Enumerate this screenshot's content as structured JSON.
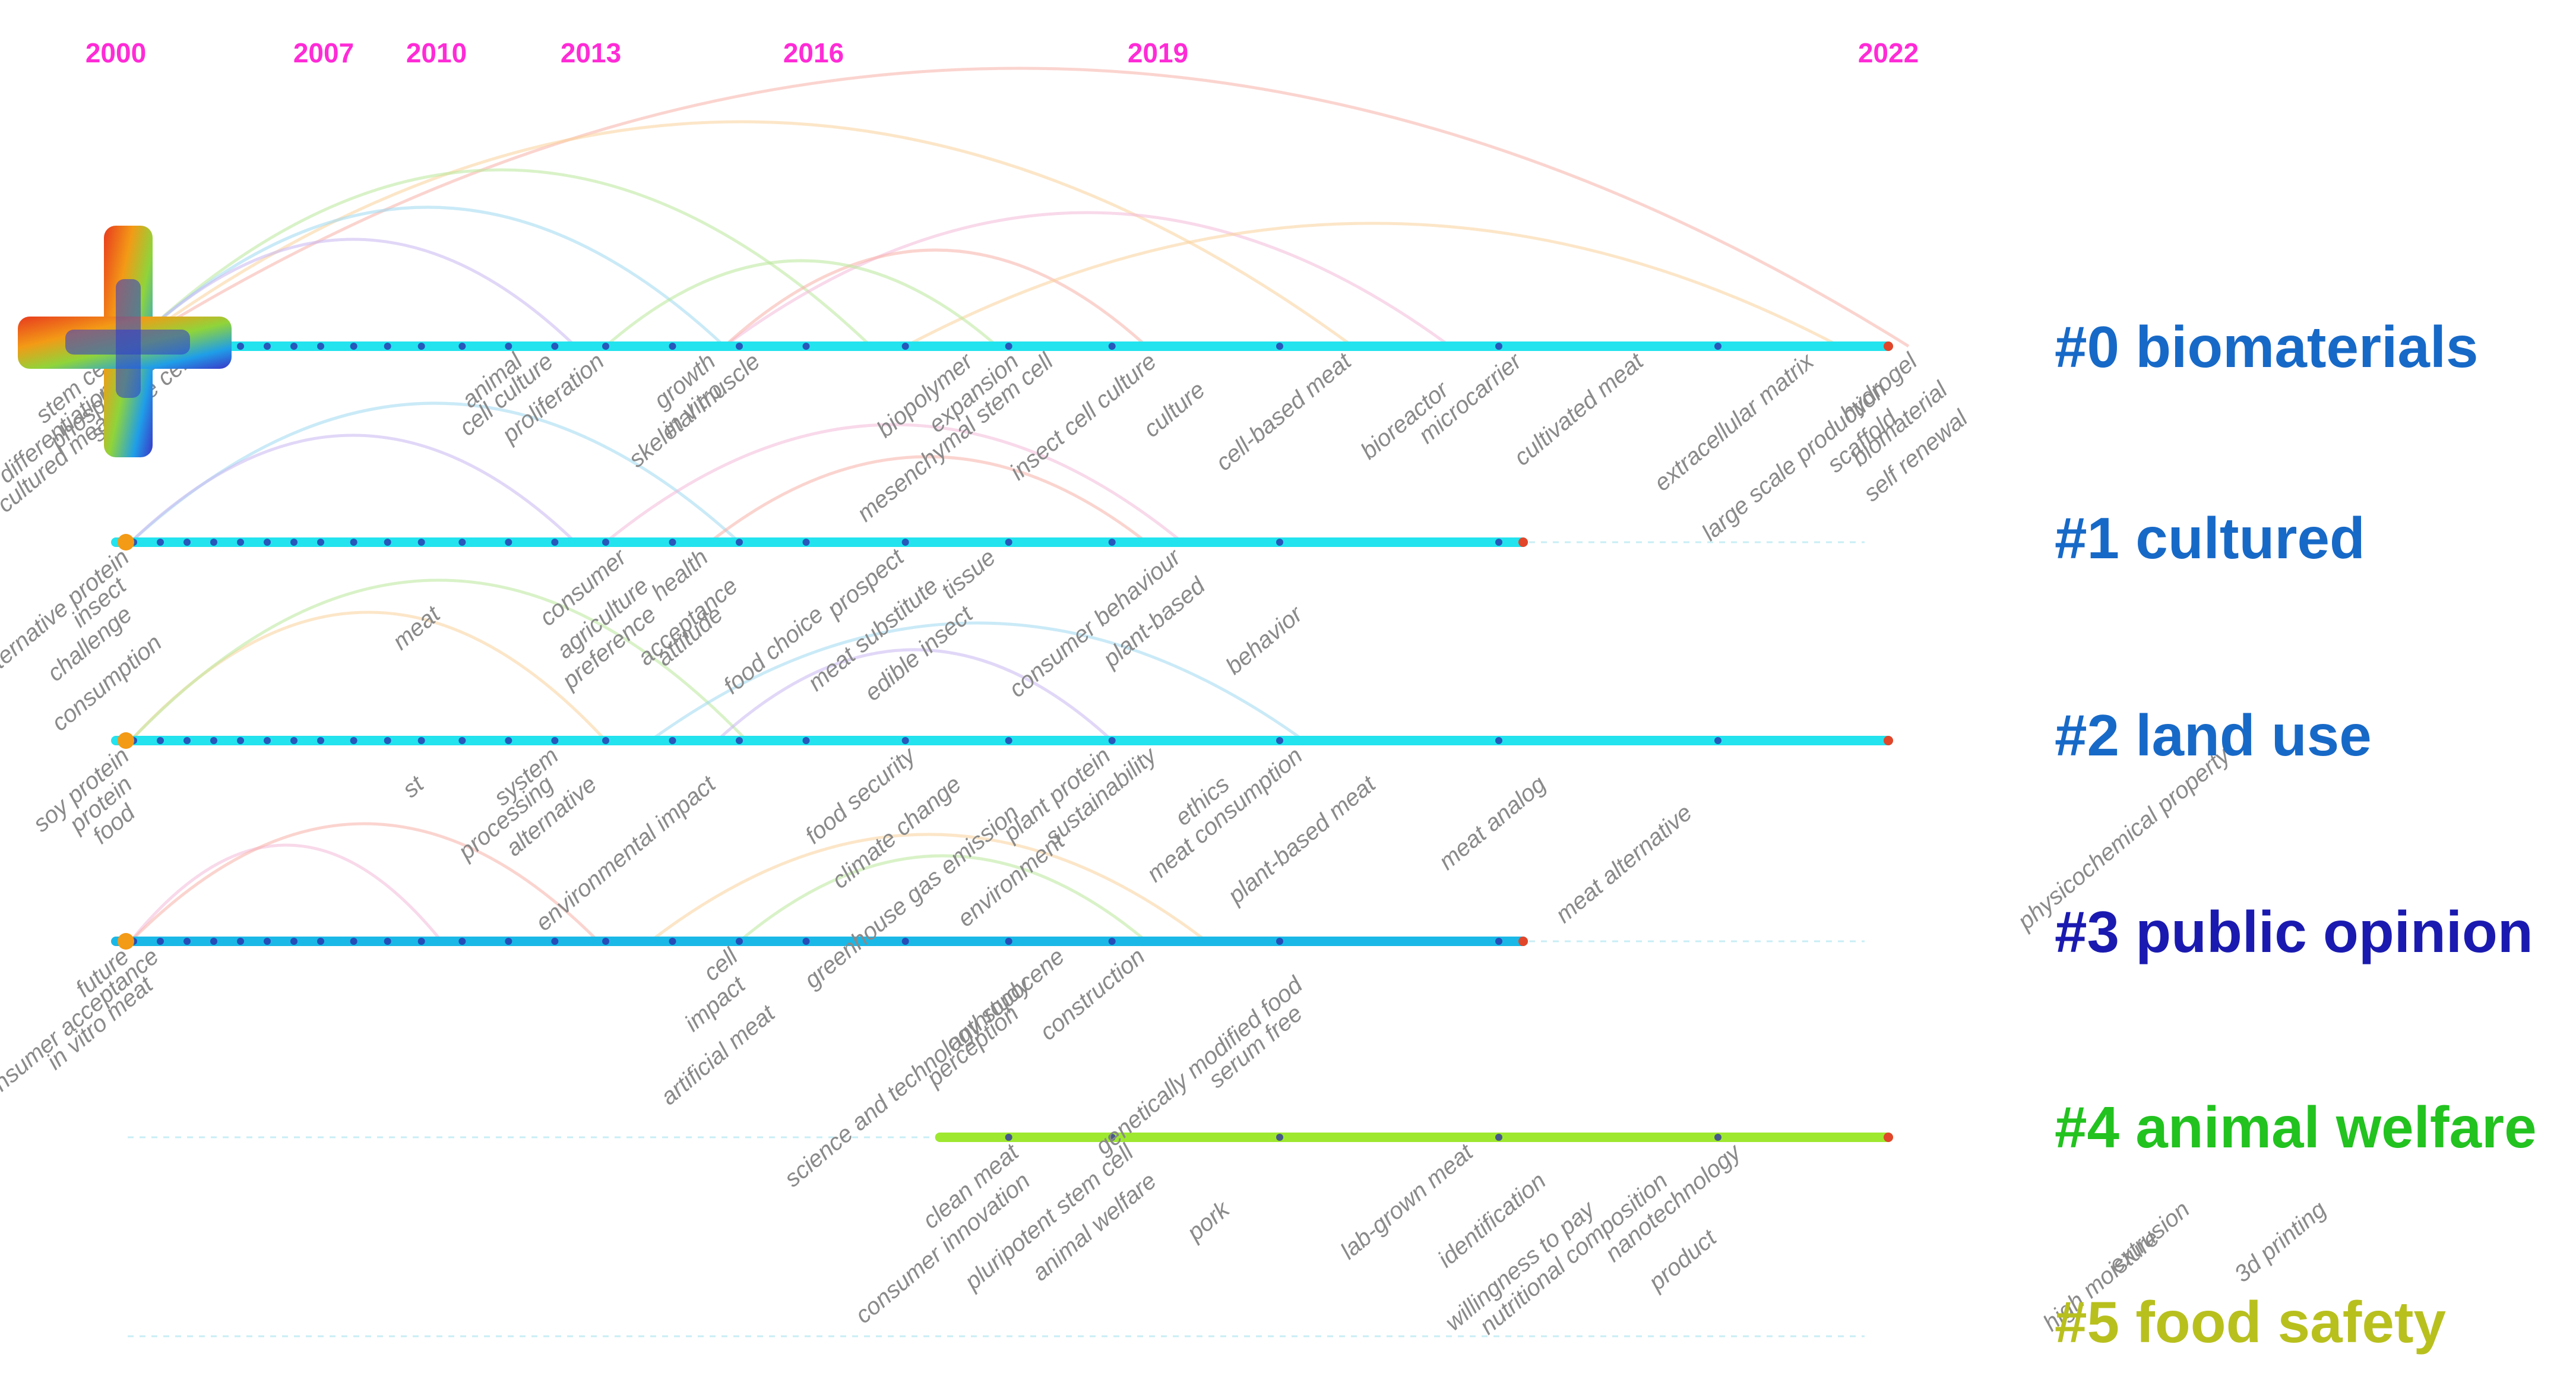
{
  "years": [
    "2000",
    "2007",
    "2010",
    "2013",
    "2016",
    "2019",
    "2022"
  ],
  "colors": {
    "year_text": "#ff2bd6",
    "track": "#22e3ee",
    "track_dark": "#1ab8e6",
    "track_green": "#9ee82f",
    "keyword": "#8a8a8a",
    "cluster0": "#1769c7",
    "cluster1": "#1769c7",
    "cluster2": "#1769c7",
    "cluster3": "#1a1ab0",
    "cluster4": "#22c21f",
    "cluster5": "#b8c01e"
  },
  "clusters": [
    {
      "label": "#0 biomaterials",
      "start_year": 2000,
      "end_year": 2022
    },
    {
      "label": "#1 cultured",
      "start_year": 2000,
      "end_year": 2020.5
    },
    {
      "label": "#2 land use",
      "start_year": 2000,
      "end_year": 2022
    },
    {
      "label": "#3 public opinion",
      "start_year": 2000,
      "end_year": 2020.5
    },
    {
      "label": "#4 animal welfare",
      "start_year": 2017.1,
      "end_year": 2022
    },
    {
      "label": "#5 food safety",
      "start_year": null,
      "end_year": null
    }
  ],
  "keywords": [
    {
      "text": "stem cell",
      "year": 2000,
      "track": 0,
      "side": "below",
      "rank": 0
    },
    {
      "text": "differentiation",
      "year": 2000,
      "track": 0,
      "side": "below",
      "rank": 1
    },
    {
      "text": "cultured meat",
      "year": 2000,
      "track": 0,
      "side": "below",
      "rank": 2
    },
    {
      "text": "phospholipid",
      "year": 2001.5,
      "track": 0,
      "side": "below",
      "rank": 0
    },
    {
      "text": "satellite cell",
      "year": 2002.6,
      "track": 0,
      "side": "below",
      "rank": 0
    },
    {
      "text": "animal",
      "year": 2011.7,
      "track": 0,
      "side": "below",
      "rank": 0
    },
    {
      "text": "cell culture",
      "year": 2012.3,
      "track": 0,
      "side": "below",
      "rank": 0
    },
    {
      "text": "proliferation",
      "year": 2013.2,
      "track": 0,
      "side": "below",
      "rank": 0
    },
    {
      "text": "growth",
      "year": 2014.7,
      "track": 0,
      "side": "below",
      "rank": 0
    },
    {
      "text": "in vitro",
      "year": 2014.8,
      "track": 0,
      "side": "below",
      "rank": 1
    },
    {
      "text": "skeletal muscle",
      "year": 2015.3,
      "track": 0,
      "side": "below",
      "rank": 0
    },
    {
      "text": "biopolymer",
      "year": 2017.4,
      "track": 0,
      "side": "below",
      "rank": 0
    },
    {
      "text": "expansion",
      "year": 2017.8,
      "track": 0,
      "side": "below",
      "rank": 0
    },
    {
      "text": "mesenchymal stem cell",
      "year": 2018.1,
      "track": 0,
      "side": "below",
      "rank": 0
    },
    {
      "text": "insect cell culture",
      "year": 2019.0,
      "track": 0,
      "side": "below",
      "rank": 0
    },
    {
      "text": "culture",
      "year": 2019.2,
      "track": 0,
      "side": "below",
      "rank": 1
    },
    {
      "text": "cell-based meat",
      "year": 2019.8,
      "track": 0,
      "side": "below",
      "rank": 0
    },
    {
      "text": "microcarrier",
      "year": 2020.5,
      "track": 0,
      "side": "below",
      "rank": 0
    },
    {
      "text": "bioreactor",
      "year": 2020.2,
      "track": 0,
      "side": "below",
      "rank": 1
    },
    {
      "text": "cultivated meat",
      "year": 2021.0,
      "track": 0,
      "side": "below",
      "rank": 0
    },
    {
      "text": "extracellular matrix",
      "year": 2021.7,
      "track": 0,
      "side": "below",
      "rank": 0
    },
    {
      "text": "large scale production",
      "year": 2022.0,
      "track": 0,
      "side": "below",
      "rank": 1
    },
    {
      "text": "scaffold",
      "year": 2022.1,
      "track": 0,
      "side": "below",
      "rank": 2
    },
    {
      "text": "hydrogel",
      "year": 2022.3,
      "track": 0,
      "side": "below",
      "rank": 0
    },
    {
      "text": "biomaterial",
      "year": 2022.6,
      "track": 0,
      "side": "below",
      "rank": 1
    },
    {
      "text": "self renewal",
      "year": 2022.8,
      "track": 0,
      "side": "below",
      "rank": 2
    },
    {
      "text": "alternative protein",
      "year": 2000.5,
      "track": 1,
      "side": "below",
      "rank": 0
    },
    {
      "text": "insect",
      "year": 2000.4,
      "track": 1,
      "side": "below",
      "rank": 1
    },
    {
      "text": "challenge",
      "year": 2000.6,
      "track": 1,
      "side": "below",
      "rank": 2
    },
    {
      "text": "consumption",
      "year": 2001.6,
      "track": 1,
      "side": "below",
      "rank": 3
    },
    {
      "text": "meat",
      "year": 2010.1,
      "track": 1,
      "side": "below",
      "rank": 2
    },
    {
      "text": "consumer",
      "year": 2013.5,
      "track": 1,
      "side": "below",
      "rank": 0
    },
    {
      "text": "agriculture",
      "year": 2013.8,
      "track": 1,
      "side": "below",
      "rank": 1
    },
    {
      "text": "preference",
      "year": 2013.9,
      "track": 1,
      "side": "below",
      "rank": 2
    },
    {
      "text": "health",
      "year": 2014.6,
      "track": 1,
      "side": "below",
      "rank": 0
    },
    {
      "text": "acceptance",
      "year": 2015.0,
      "track": 1,
      "side": "below",
      "rank": 1
    },
    {
      "text": "attitude",
      "year": 2014.8,
      "track": 1,
      "side": "below",
      "rank": 2
    },
    {
      "text": "food choice",
      "year": 2016.1,
      "track": 1,
      "side": "below",
      "rank": 2
    },
    {
      "text": "prospect",
      "year": 2016.8,
      "track": 1,
      "side": "below",
      "rank": 0
    },
    {
      "text": "meat substitute",
      "year": 2017.1,
      "track": 1,
      "side": "below",
      "rank": 1
    },
    {
      "text": "tissue",
      "year": 2017.6,
      "track": 1,
      "side": "below",
      "rank": 0
    },
    {
      "text": "edible insect",
      "year": 2017.4,
      "track": 1,
      "side": "below",
      "rank": 2
    },
    {
      "text": "consumer behaviour",
      "year": 2019.1,
      "track": 1,
      "side": "below",
      "rank": 0
    },
    {
      "text": "plant-based",
      "year": 2019.2,
      "track": 1,
      "side": "below",
      "rank": 1
    },
    {
      "text": "behavior",
      "year": 2019.6,
      "track": 1,
      "side": "below",
      "rank": 2
    },
    {
      "text": "soy protein",
      "year": 2000.5,
      "track": 2,
      "side": "below",
      "rank": 0
    },
    {
      "text": "protein",
      "year": 2000.6,
      "track": 2,
      "side": "below",
      "rank": 1
    },
    {
      "text": "food",
      "year": 2000.7,
      "track": 2,
      "side": "below",
      "rank": 2
    },
    {
      "text": "st",
      "year": 2009.7,
      "track": 2,
      "side": "below",
      "rank": 1
    },
    {
      "text": "system",
      "year": 2012.4,
      "track": 2,
      "side": "below",
      "rank": 0
    },
    {
      "text": "processing",
      "year": 2012.3,
      "track": 2,
      "side": "below",
      "rank": 1
    },
    {
      "text": "alternative",
      "year": 2013.1,
      "track": 2,
      "side": "below",
      "rank": 1
    },
    {
      "text": "environmental impact",
      "year": 2014.7,
      "track": 2,
      "side": "below",
      "rank": 1
    },
    {
      "text": "food security",
      "year": 2016.9,
      "track": 2,
      "side": "below",
      "rank": 0
    },
    {
      "text": "climate change",
      "year": 2017.3,
      "track": 2,
      "side": "below",
      "rank": 1
    },
    {
      "text": "greenhouse gas emission",
      "year": 2017.8,
      "track": 2,
      "side": "below",
      "rank": 2
    },
    {
      "text": "plant protein",
      "year": 2018.6,
      "track": 2,
      "side": "below",
      "rank": 0
    },
    {
      "text": "sustainability",
      "year": 2019.0,
      "track": 2,
      "side": "below",
      "rank": 0
    },
    {
      "text": "environment",
      "year": 2018.2,
      "track": 2,
      "side": "below",
      "rank": 3
    },
    {
      "text": "ethics",
      "year": 2019.3,
      "track": 2,
      "side": "below",
      "rank": 1
    },
    {
      "text": "meat consumption",
      "year": 2019.6,
      "track": 2,
      "side": "below",
      "rank": 0
    },
    {
      "text": "plant-based meat",
      "year": 2019.9,
      "track": 2,
      "side": "below",
      "rank": 1
    },
    {
      "text": "meat analog",
      "year": 2020.6,
      "track": 2,
      "side": "below",
      "rank": 1
    },
    {
      "text": "meat alternative",
      "year": 2021.2,
      "track": 2,
      "side": "below",
      "rank": 2
    },
    {
      "text": "physicochemical property",
      "year": 2025.4,
      "track": 2,
      "side": "below",
      "rank": 0
    },
    {
      "text": "future",
      "year": 2000.5,
      "track": 3,
      "side": "below",
      "rank": 0
    },
    {
      "text": "consumer acceptance",
      "year": 2001.5,
      "track": 3,
      "side": "below",
      "rank": 0
    },
    {
      "text": "in vitro meat",
      "year": 2001.3,
      "track": 3,
      "side": "below",
      "rank": 1
    },
    {
      "text": "cell",
      "year": 2015.0,
      "track": 3,
      "side": "below",
      "rank": 0
    },
    {
      "text": "impact",
      "year": 2015.1,
      "track": 3,
      "side": "below",
      "rank": 1
    },
    {
      "text": "artificial meat",
      "year": 2015.5,
      "track": 3,
      "side": "below",
      "rank": 2
    },
    {
      "text": "anthropocene",
      "year": 2018.2,
      "track": 3,
      "side": "below",
      "rank": 0
    },
    {
      "text": "science and technology study",
      "year": 2017.9,
      "track": 3,
      "side": "below",
      "rank": 1
    },
    {
      "text": "perception",
      "year": 2017.8,
      "track": 3,
      "side": "below",
      "rank": 2
    },
    {
      "text": "construction",
      "year": 2018.9,
      "track": 3,
      "side": "below",
      "rank": 0
    },
    {
      "text": "genetically modified food",
      "year": 2019.6,
      "track": 3,
      "side": "below",
      "rank": 1
    },
    {
      "text": "serum free",
      "year": 2019.6,
      "track": 3,
      "side": "below",
      "rank": 2
    },
    {
      "text": "clean meat",
      "year": 2017.8,
      "track": 4,
      "side": "below",
      "rank": 0
    },
    {
      "text": "consumer innovation",
      "year": 2017.9,
      "track": 4,
      "side": "below",
      "rank": 1
    },
    {
      "text": "pluripotent stem cell",
      "year": 2018.8,
      "track": 4,
      "side": "below",
      "rank": 0
    },
    {
      "text": "animal welfare",
      "year": 2019.0,
      "track": 4,
      "side": "below",
      "rank": 1
    },
    {
      "text": "pork",
      "year": 2019.3,
      "track": 4,
      "side": "below",
      "rank": 2
    },
    {
      "text": "lab-grown meat",
      "year": 2020.3,
      "track": 4,
      "side": "below",
      "rank": 0
    },
    {
      "text": "identification",
      "year": 2020.6,
      "track": 4,
      "side": "below",
      "rank": 1
    },
    {
      "text": "nanotechnology",
      "year": 2021.4,
      "track": 4,
      "side": "below",
      "rank": 0
    },
    {
      "text": "nutritional composition",
      "year": 2021.1,
      "track": 4,
      "side": "below",
      "rank": 1
    },
    {
      "text": "willingness to pay",
      "year": 2020.8,
      "track": 4,
      "side": "below",
      "rank": 2
    },
    {
      "text": "product",
      "year": 2021.3,
      "track": 4,
      "side": "below",
      "rank": 3
    },
    {
      "text": "high moisture",
      "year": 2024.7,
      "track": 4,
      "side": "below",
      "rank": 3
    },
    {
      "text": "extrusion",
      "year": 2025.0,
      "track": 4,
      "side": "below",
      "rank": 2
    },
    {
      "text": "3d printing",
      "year": 2026.4,
      "track": 4,
      "side": "below",
      "rank": 2
    }
  ]
}
